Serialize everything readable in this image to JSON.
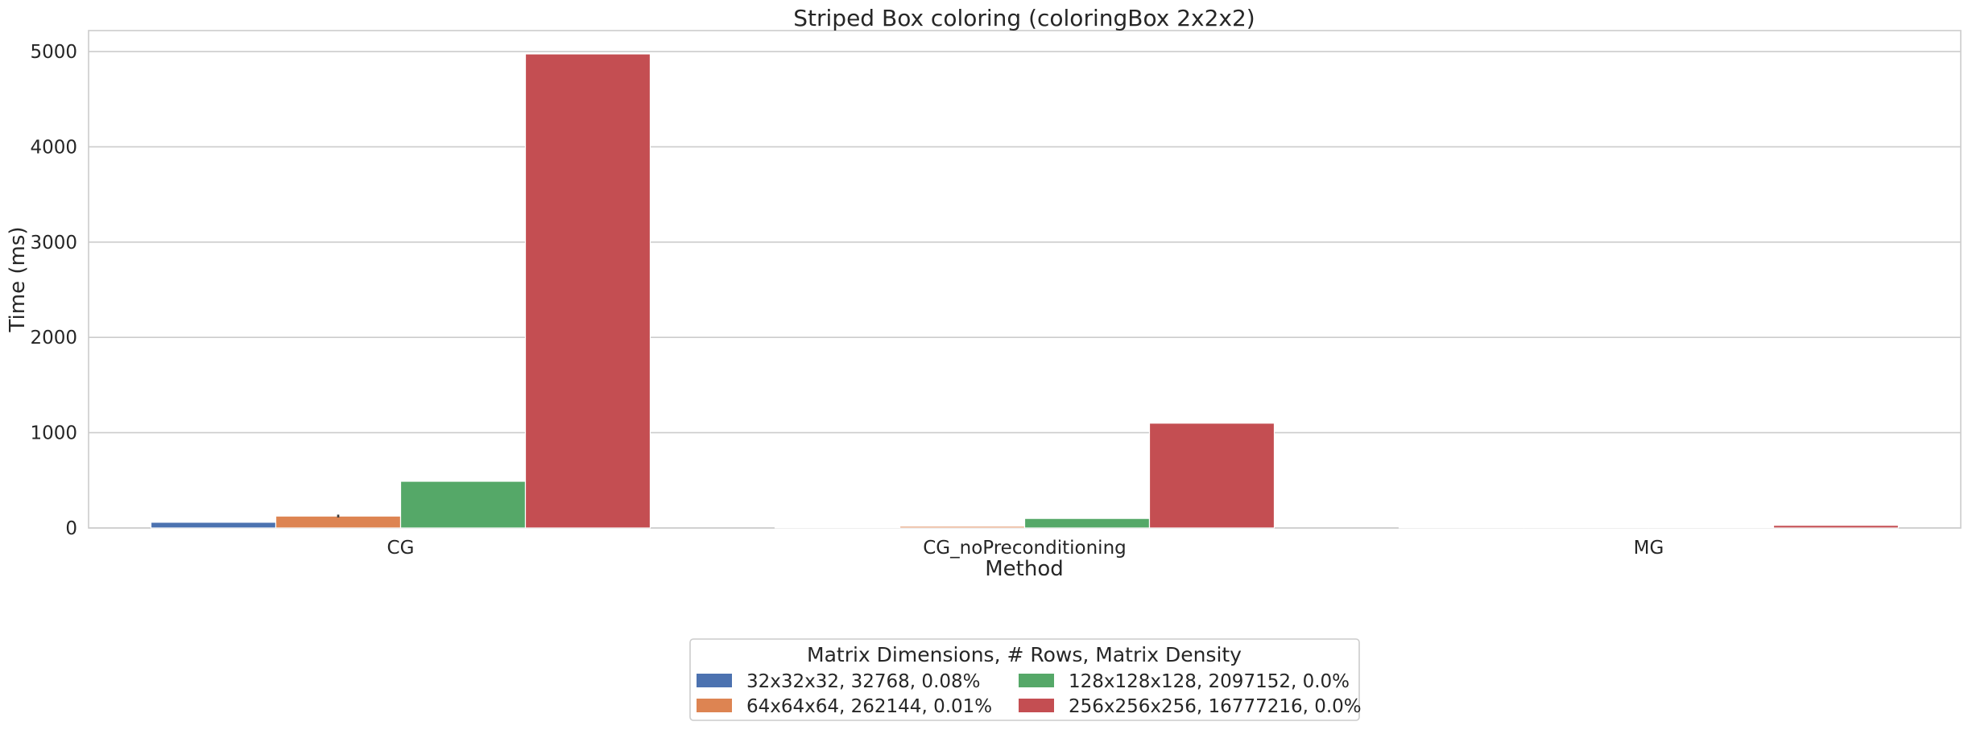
{
  "chart_data": {
    "type": "bar",
    "title": "Striped Box coloring (coloringBox 2x2x2)",
    "xlabel": "Method",
    "ylabel": "Time (ms)",
    "categories": [
      "CG",
      "CG_noPreconditioning",
      "MG"
    ],
    "ylim": [
      0,
      5220
    ],
    "yticks": [
      0,
      1000,
      2000,
      3000,
      4000,
      5000
    ],
    "grid": true,
    "legend_title": "Matrix Dimensions, # Rows, Matrix Density",
    "legend_position": "bottom-center",
    "series": [
      {
        "name": "32x32x32, 32768, 0.08%",
        "color": "#4c72b0",
        "values": [
          60,
          3,
          1
        ]
      },
      {
        "name": "64x64x64, 262144, 0.01%",
        "color": "#dd8452",
        "values": [
          125,
          18,
          3
        ]
      },
      {
        "name": "128x128x128, 2097152, 0.0%",
        "color": "#55a868",
        "values": [
          490,
          100,
          8
        ]
      },
      {
        "name": "256x256x256, 16777216, 0.0%",
        "color": "#c44e52",
        "values": [
          4975,
          1100,
          28
        ]
      }
    ],
    "error_bars": [
      {
        "series": 1,
        "category": 0,
        "low": 110,
        "high": 140
      }
    ]
  }
}
